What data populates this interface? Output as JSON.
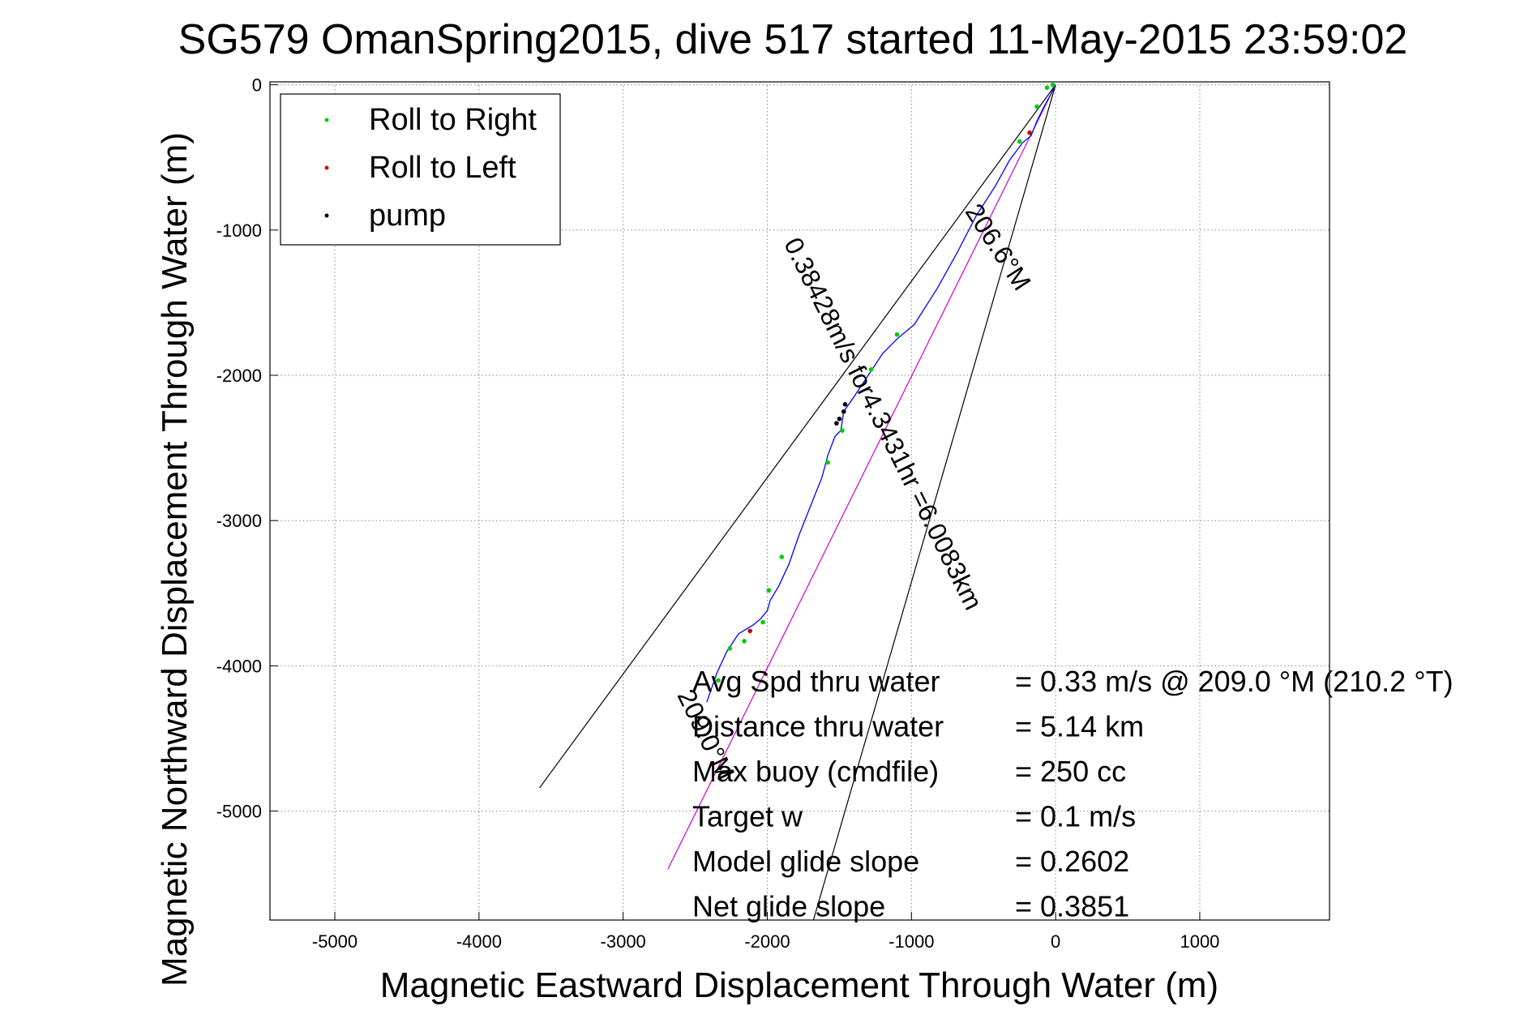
{
  "chart_data": {
    "type": "scatter",
    "title": "SG579 OmanSpring2015, dive 517 started 11-May-2015 23:59:02",
    "xlabel": "Magnetic Eastward Displacement Through Water (m)",
    "ylabel": "Magnetic Northward Displacement Through Water (m)",
    "xlim": [
      -5450,
      1900
    ],
    "ylim": [
      -5750,
      20
    ],
    "x_ticks": [
      -5000,
      -4000,
      -3000,
      -2000,
      -1000,
      0,
      1000
    ],
    "y_ticks": [
      0,
      -1000,
      -2000,
      -3000,
      -4000,
      -5000
    ],
    "grid": true,
    "legend_position": "top-left",
    "legend": [
      {
        "label": "Roll to Right",
        "color": "#00cc00"
      },
      {
        "label": "Roll to Left",
        "color": "#cc0000"
      },
      {
        "label": "pump",
        "color": "#000000"
      }
    ],
    "track": {
      "color": "#0000ff",
      "points": [
        [
          0,
          0
        ],
        [
          -30,
          -60
        ],
        [
          -80,
          -150
        ],
        [
          -130,
          -250
        ],
        [
          -170,
          -350
        ],
        [
          -230,
          -400
        ],
        [
          -320,
          -520
        ],
        [
          -420,
          -700
        ],
        [
          -550,
          -900
        ],
        [
          -680,
          -1150
        ],
        [
          -820,
          -1400
        ],
        [
          -980,
          -1650
        ],
        [
          -1100,
          -1750
        ],
        [
          -1200,
          -1850
        ],
        [
          -1300,
          -2000
        ],
        [
          -1400,
          -2150
        ],
        [
          -1470,
          -2250
        ],
        [
          -1490,
          -2380
        ],
        [
          -1530,
          -2420
        ],
        [
          -1580,
          -2550
        ],
        [
          -1620,
          -2700
        ],
        [
          -1700,
          -2900
        ],
        [
          -1780,
          -3100
        ],
        [
          -1850,
          -3300
        ],
        [
          -1920,
          -3450
        ],
        [
          -1980,
          -3550
        ],
        [
          -2000,
          -3620
        ],
        [
          -2050,
          -3680
        ],
        [
          -2100,
          -3720
        ],
        [
          -2200,
          -3780
        ],
        [
          -2280,
          -3900
        ],
        [
          -2350,
          -4050
        ],
        [
          -2420,
          -4250
        ]
      ]
    },
    "roll_right_points": [
      [
        -20,
        0
      ],
      [
        -60,
        -20
      ],
      [
        -130,
        -150
      ],
      [
        -250,
        -390
      ],
      [
        -1100,
        -1720
      ],
      [
        -1280,
        -1960
      ],
      [
        -1480,
        -2380
      ],
      [
        -1580,
        -2600
      ],
      [
        -1900,
        -3250
      ],
      [
        -1990,
        -3480
      ],
      [
        -2030,
        -3700
      ],
      [
        -2160,
        -3830
      ],
      [
        -2260,
        -3880
      ],
      [
        -2340,
        -4100
      ]
    ],
    "roll_left_points": [
      [
        -180,
        -330
      ],
      [
        -2120,
        -3760
      ]
    ],
    "pump_points": [
      [
        -1460,
        -2200
      ],
      [
        -1470,
        -2250
      ],
      [
        -1500,
        -2300
      ],
      [
        -1520,
        -2330
      ]
    ],
    "reference_lines": [
      {
        "color": "#000000",
        "from": [
          0,
          0
        ],
        "to": [
          -3580,
          -4840
        ]
      },
      {
        "color": "#000000",
        "from": [
          0,
          0
        ],
        "to": [
          -1680,
          -5750
        ]
      },
      {
        "color": "#cc00cc",
        "from": [
          0,
          0
        ],
        "to": [
          -2690,
          -5400
        ]
      }
    ],
    "annotations": [
      {
        "text": "206.6°M",
        "at": [
          -450,
          -1150
        ],
        "rotate": 57
      },
      {
        "text": "0.38428m/s for4.3431hr =6.0083km",
        "at": [
          -1250,
          -2360
        ],
        "rotate": 63.5
      },
      {
        "text": "209.0°M",
        "at": [
          -2480,
          -4500
        ],
        "rotate": 64
      }
    ],
    "stats": [
      {
        "label": "Avg Spd thru water",
        "value": "=  0.33 m/s @ 209.0 °M (210.2 °T)"
      },
      {
        "label": "Distance thru water",
        "value": "=  5.14 km"
      },
      {
        "label": "Max buoy (cmdfile)",
        "value": "= 250 cc"
      },
      {
        "label": "Target w",
        "value": "= 0.1 m/s"
      },
      {
        "label": "Model glide slope",
        "value": "= 0.2602"
      },
      {
        "label": "Net glide slope",
        "value": "= 0.3851"
      }
    ]
  }
}
